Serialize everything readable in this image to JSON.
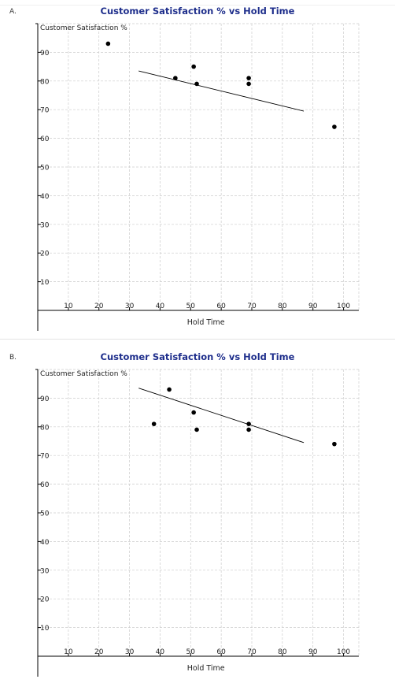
{
  "panels": [
    {
      "letter": "A."
    },
    {
      "letter": "B."
    }
  ],
  "chart_data": [
    {
      "type": "scatter",
      "title": "Customer Satisfaction % vs Hold Time",
      "xlabel": "Hold Time",
      "ylabel": "Customer Satisfaction %",
      "xlim": [
        0,
        105
      ],
      "ylim": [
        0,
        100
      ],
      "xticks": [
        10,
        20,
        30,
        40,
        50,
        60,
        70,
        80,
        90,
        100
      ],
      "yticks": [
        10,
        20,
        30,
        40,
        50,
        60,
        70,
        80,
        90
      ],
      "grid": true,
      "points": [
        {
          "x": 23,
          "y": 93
        },
        {
          "x": 45,
          "y": 81
        },
        {
          "x": 51,
          "y": 85
        },
        {
          "x": 52,
          "y": 79
        },
        {
          "x": 69,
          "y": 81
        },
        {
          "x": 69,
          "y": 79
        },
        {
          "x": 97,
          "y": 64
        }
      ],
      "trendline": [
        {
          "x": 33,
          "y": 83.5
        },
        {
          "x": 87,
          "y": 69.5
        }
      ],
      "colors": {
        "title": "#1f2f8c",
        "points": "#000000",
        "grid": "#cccccc",
        "axis": "#000000"
      }
    },
    {
      "type": "scatter",
      "title": "Customer Satisfaction % vs Hold Time",
      "xlabel": "Hold Time",
      "ylabel": "Customer Satisfaction %",
      "xlim": [
        0,
        105
      ],
      "ylim": [
        0,
        100
      ],
      "xticks": [
        10,
        20,
        30,
        40,
        50,
        60,
        70,
        80,
        90,
        100
      ],
      "yticks": [
        10,
        20,
        30,
        40,
        50,
        60,
        70,
        80,
        90
      ],
      "grid": true,
      "points": [
        {
          "x": 38,
          "y": 81
        },
        {
          "x": 43,
          "y": 93
        },
        {
          "x": 51,
          "y": 85
        },
        {
          "x": 52,
          "y": 79
        },
        {
          "x": 69,
          "y": 81
        },
        {
          "x": 69,
          "y": 79
        },
        {
          "x": 97,
          "y": 74
        }
      ],
      "trendline": [
        {
          "x": 33,
          "y": 93.5
        },
        {
          "x": 87,
          "y": 74.5
        }
      ],
      "colors": {
        "title": "#1f2f8c",
        "points": "#000000",
        "grid": "#cccccc",
        "axis": "#000000"
      }
    }
  ]
}
